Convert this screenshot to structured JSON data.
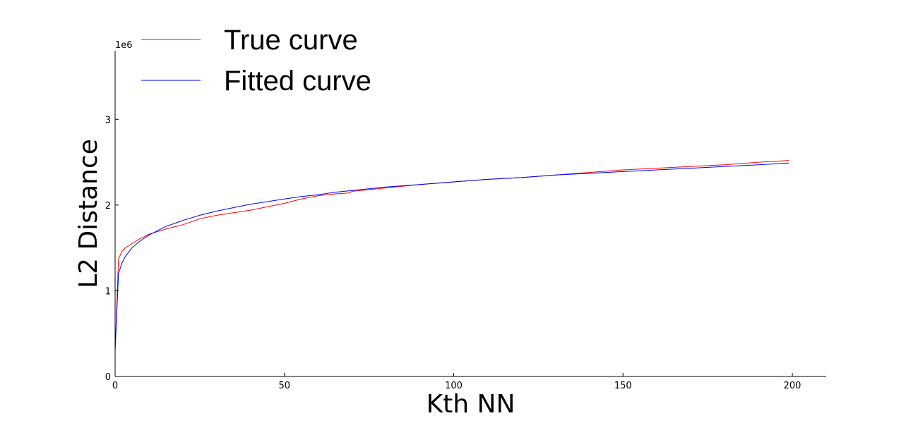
{
  "chart_data": {
    "type": "line",
    "xlabel": "Kth NN",
    "ylabel": "L2 Distance",
    "y_offset_label": "1e6",
    "xlim": [
      0,
      210
    ],
    "ylim": [
      0,
      3.8
    ],
    "x_ticks": [
      0,
      50,
      100,
      150,
      200
    ],
    "x_tick_labels": [
      "0",
      "50",
      "100",
      "150",
      "200"
    ],
    "y_ticks": [
      0,
      1,
      2,
      3
    ],
    "y_tick_labels": [
      "0",
      "1",
      "2",
      "3"
    ],
    "y_scale_multiplier": 1000000,
    "grid": false,
    "legend_position": "upper-left",
    "series": [
      {
        "name": "True curve",
        "color": "#ff0000",
        "x": [
          0,
          1,
          2,
          3,
          5,
          7,
          10,
          15,
          20,
          25,
          30,
          35,
          40,
          45,
          50,
          55,
          60,
          65,
          69,
          70,
          75,
          80,
          90,
          100,
          110,
          120,
          130,
          140,
          150,
          160,
          170,
          180,
          190,
          199
        ],
        "y": [
          0.3,
          1.37,
          1.46,
          1.5,
          1.55,
          1.6,
          1.66,
          1.72,
          1.77,
          1.84,
          1.88,
          1.91,
          1.94,
          1.98,
          2.02,
          2.07,
          2.11,
          2.13,
          2.14,
          2.16,
          2.18,
          2.2,
          2.24,
          2.27,
          2.3,
          2.32,
          2.35,
          2.38,
          2.41,
          2.43,
          2.45,
          2.47,
          2.5,
          2.52
        ]
      },
      {
        "name": "Fitted curve",
        "color": "#0000ff",
        "x": [
          0,
          1,
          2,
          3,
          5,
          7,
          10,
          15,
          20,
          25,
          30,
          35,
          40,
          45,
          50,
          55,
          60,
          65,
          70,
          75,
          80,
          90,
          100,
          110,
          120,
          130,
          140,
          150,
          160,
          170,
          180,
          190,
          199
        ],
        "y": [
          0.3,
          1.2,
          1.32,
          1.4,
          1.5,
          1.57,
          1.65,
          1.75,
          1.82,
          1.88,
          1.93,
          1.97,
          2.01,
          2.04,
          2.07,
          2.1,
          2.12,
          2.15,
          2.17,
          2.19,
          2.21,
          2.24,
          2.27,
          2.3,
          2.32,
          2.35,
          2.37,
          2.39,
          2.41,
          2.43,
          2.45,
          2.47,
          2.49
        ]
      }
    ]
  }
}
